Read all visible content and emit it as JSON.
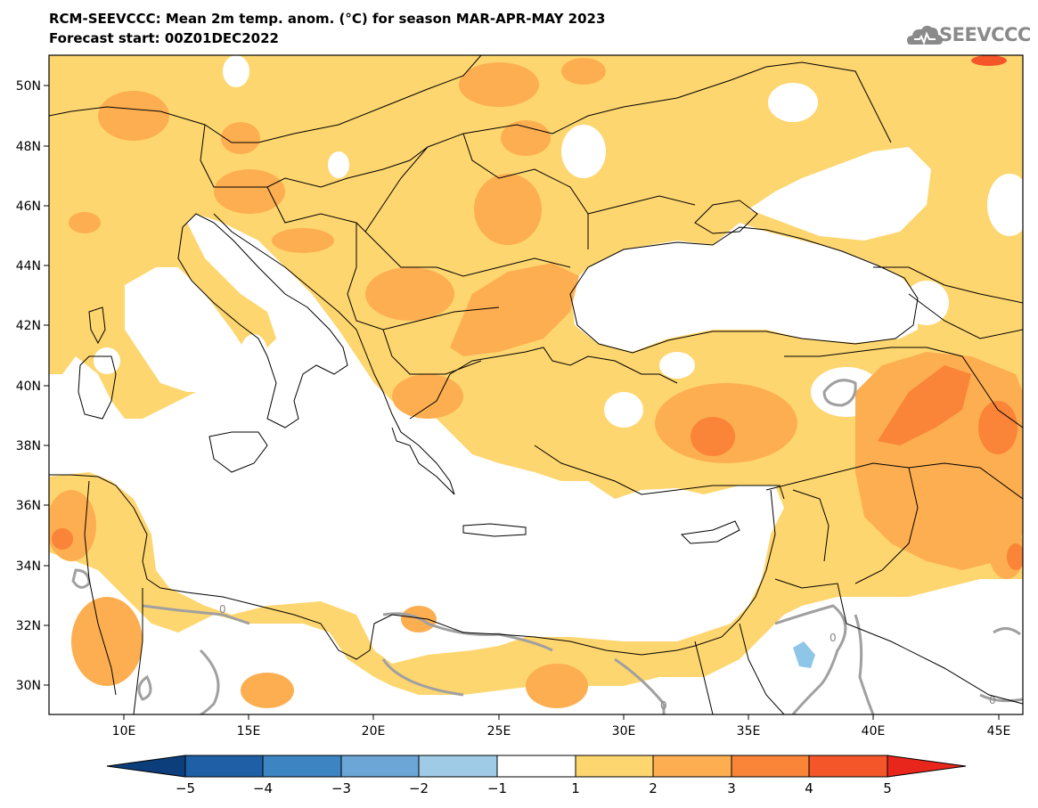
{
  "title": {
    "line1": "RCM-SEEVCCC: Mean 2m temp. anom. (°C) for season MAR-APR-MAY 2023",
    "line2": "Forecast start: 00Z01DEC2022"
  },
  "logo": {
    "text": "SEEVCCC",
    "icon": "cloud-icon"
  },
  "map": {
    "lat_labels": [
      "50N",
      "48N",
      "46N",
      "44N",
      "42N",
      "40N",
      "38N",
      "36N",
      "34N",
      "32N",
      "30N"
    ],
    "lon_labels": [
      "10E",
      "15E",
      "20E",
      "25E",
      "30E",
      "35E",
      "40E",
      "45E"
    ],
    "contour_label": "0",
    "colors": {
      "c1_2": "#fed66f",
      "c2_3": "#fdae51",
      "c3_4": "#fa8437",
      "c4_5": "#f4562a",
      "cm1_m2": "#8ec6e7",
      "contour": "#a0a0a0",
      "border": "#000000"
    }
  },
  "colorbar": {
    "labels": [
      "−5",
      "−4",
      "−3",
      "−2",
      "−1",
      "1",
      "2",
      "3",
      "4",
      "5"
    ],
    "colors": [
      "#0b3e7a",
      "#1e5fa6",
      "#3d84c3",
      "#6ba6d6",
      "#a0cbe6",
      "#ffffff",
      "#fed66f",
      "#fdae51",
      "#fa8437",
      "#f4562a",
      "#e8261c"
    ]
  }
}
